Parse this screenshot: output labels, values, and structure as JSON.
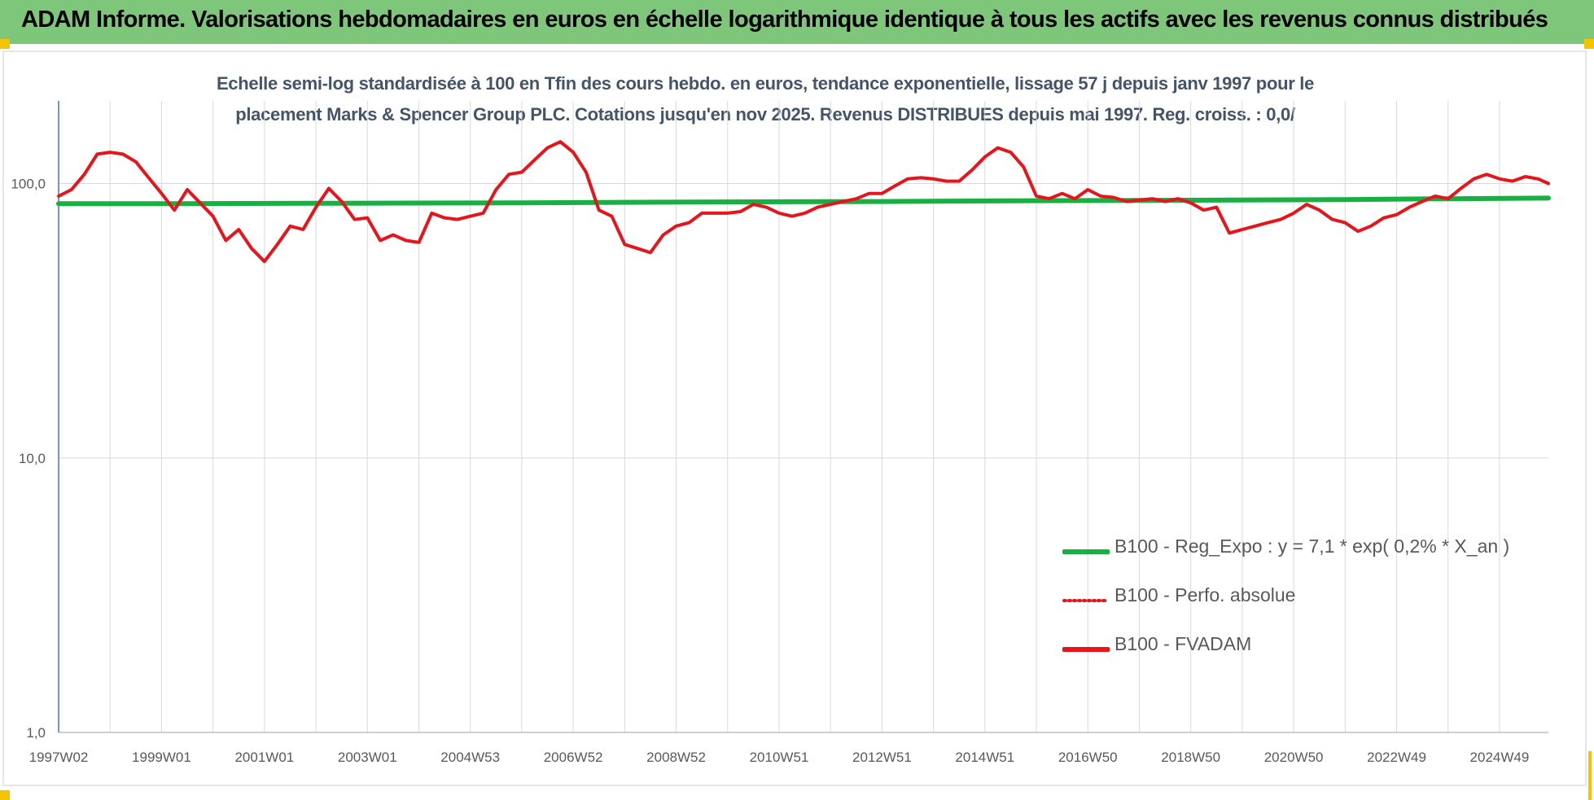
{
  "banner": {
    "title": "ADAM Informe. Valorisations hebdomadaires en euros en échelle logarithmique identique à tous les actifs avec les revenus connus distribués"
  },
  "colors": {
    "banner_bg": "#7dc67a",
    "series_fvadam": "#e8141c",
    "series_perfo": "#e8141c",
    "series_reg": "#19b043",
    "title_text": "#44546a",
    "axis_text": "#595959",
    "gridline": "#d9d9d9",
    "accent_marks": "#f5c400"
  },
  "chart_data": {
    "type": "line",
    "title_line1": "Echelle semi-log standardisée à 100 en Tfin des cours hebdo. en euros, tendance exponentielle, lissage 57 j depuis janv 1997 pour le",
    "title_line2": "placement Marks & Spencer Group PLC. Cotations jusqu'en nov 2025. Revenus DISTRIBUES depuis mai 1997. Reg. croiss. : 0,0/",
    "y_scale": "log",
    "ylim": [
      1,
      200
    ],
    "y_ticks": [
      {
        "value": 1,
        "label": "1,0"
      },
      {
        "value": 10,
        "label": "10,0"
      },
      {
        "value": 100,
        "label": "100,0"
      }
    ],
    "x_range": [
      1997.0,
      2025.95
    ],
    "x_ticks": [
      {
        "x": 1997.0,
        "label": "1997W02"
      },
      {
        "x": 1999.0,
        "label": "1999W01"
      },
      {
        "x": 2001.0,
        "label": "2001W01"
      },
      {
        "x": 2003.0,
        "label": "2003W01"
      },
      {
        "x": 2005.0,
        "label": "2004W53"
      },
      {
        "x": 2007.0,
        "label": "2006W52"
      },
      {
        "x": 2009.0,
        "label": "2008W52"
      },
      {
        "x": 2011.0,
        "label": "2010W51"
      },
      {
        "x": 2013.0,
        "label": "2012W51"
      },
      {
        "x": 2015.0,
        "label": "2014W51"
      },
      {
        "x": 2017.0,
        "label": "2016W50"
      },
      {
        "x": 2019.0,
        "label": "2018W50"
      },
      {
        "x": 2021.0,
        "label": "2020W50"
      },
      {
        "x": 2023.0,
        "label": "2022W49"
      },
      {
        "x": 2025.0,
        "label": "2024W49"
      }
    ],
    "grid": "vertical",
    "legend_position": "bottom-right",
    "legend": [
      {
        "key": "reg",
        "label": "B100 - Reg_Expo : y = 7,1 * exp( 0,2% *  X_an )"
      },
      {
        "key": "perfo",
        "label": "B100 - Perfo. absolue"
      },
      {
        "key": "fvadam",
        "label": "B100 - FVADAM"
      }
    ],
    "series": [
      {
        "key": "reg",
        "name": "B100 - Reg_Expo : y = 7,1 * exp( 0,2% *  X_an )",
        "style": "solid-thick",
        "x": [
          1997.0,
          1999.5,
          2002.5,
          2006.0,
          2009.3,
          2013.0,
          2016.0,
          2019.5,
          2022.0,
          2023.5,
          2025.95
        ],
        "values": [
          84.5,
          84.5,
          84.8,
          85.1,
          85.6,
          86.0,
          86.6,
          87.0,
          87.4,
          87.9,
          88.5
        ]
      },
      {
        "key": "fvadam",
        "name": "B100 - FVADAM",
        "style": "solid",
        "x": [
          1997.0,
          1997.25,
          1997.5,
          1997.75,
          1998.0,
          1998.25,
          1998.5,
          1998.75,
          1999.0,
          1999.25,
          1999.5,
          1999.75,
          2000.0,
          2000.25,
          2000.5,
          2000.75,
          2001.0,
          2001.25,
          2001.5,
          2001.75,
          2002.0,
          2002.25,
          2002.5,
          2002.75,
          2003.0,
          2003.25,
          2003.5,
          2003.75,
          2004.0,
          2004.25,
          2004.5,
          2004.75,
          2005.0,
          2005.25,
          2005.5,
          2005.75,
          2006.0,
          2006.25,
          2006.5,
          2006.75,
          2007.0,
          2007.25,
          2007.5,
          2007.75,
          2008.0,
          2008.25,
          2008.5,
          2008.75,
          2009.0,
          2009.25,
          2009.5,
          2009.75,
          2010.0,
          2010.25,
          2010.5,
          2010.75,
          2011.0,
          2011.25,
          2011.5,
          2011.75,
          2012.0,
          2012.25,
          2012.5,
          2012.75,
          2013.0,
          2013.25,
          2013.5,
          2013.75,
          2014.0,
          2014.25,
          2014.5,
          2014.75,
          2015.0,
          2015.25,
          2015.5,
          2015.75,
          2016.0,
          2016.25,
          2016.5,
          2016.75,
          2017.0,
          2017.25,
          2017.5,
          2017.75,
          2018.0,
          2018.25,
          2018.5,
          2018.75,
          2019.0,
          2019.25,
          2019.5,
          2019.75,
          2020.0,
          2020.25,
          2020.5,
          2020.75,
          2021.0,
          2021.25,
          2021.5,
          2021.75,
          2022.0,
          2022.25,
          2022.5,
          2022.75,
          2023.0,
          2023.25,
          2023.5,
          2023.75,
          2024.0,
          2024.25,
          2024.5,
          2024.75,
          2025.0,
          2025.25,
          2025.5,
          2025.75,
          2025.95
        ],
        "values": [
          90,
          95,
          108,
          128,
          130,
          128,
          120,
          105,
          92,
          80,
          95,
          85,
          76,
          62,
          68,
          58,
          52,
          60,
          70,
          68,
          82,
          96,
          86,
          74,
          75,
          62,
          65,
          62,
          61,
          78,
          75,
          74,
          76,
          78,
          95,
          108,
          110,
          122,
          135,
          142,
          130,
          110,
          80,
          76,
          60,
          58,
          56,
          65,
          70,
          72,
          78,
          78,
          78,
          79,
          84,
          82,
          78,
          76,
          78,
          82,
          84,
          86,
          88,
          92,
          92,
          98,
          104,
          105,
          104,
          102,
          102,
          112,
          125,
          135,
          130,
          115,
          90,
          88,
          92,
          88,
          95,
          90,
          89,
          86,
          87,
          88,
          86,
          88,
          85,
          80,
          82,
          66,
          68,
          70,
          72,
          74,
          78,
          84,
          80,
          74,
          72,
          67,
          70,
          75,
          77,
          82,
          86,
          90,
          88,
          96,
          104,
          108,
          104,
          102,
          106,
          104,
          100
        ]
      },
      {
        "key": "perfo",
        "name": "B100 - Perfo. absolue",
        "style": "dotted",
        "x": [],
        "values": []
      }
    ]
  }
}
